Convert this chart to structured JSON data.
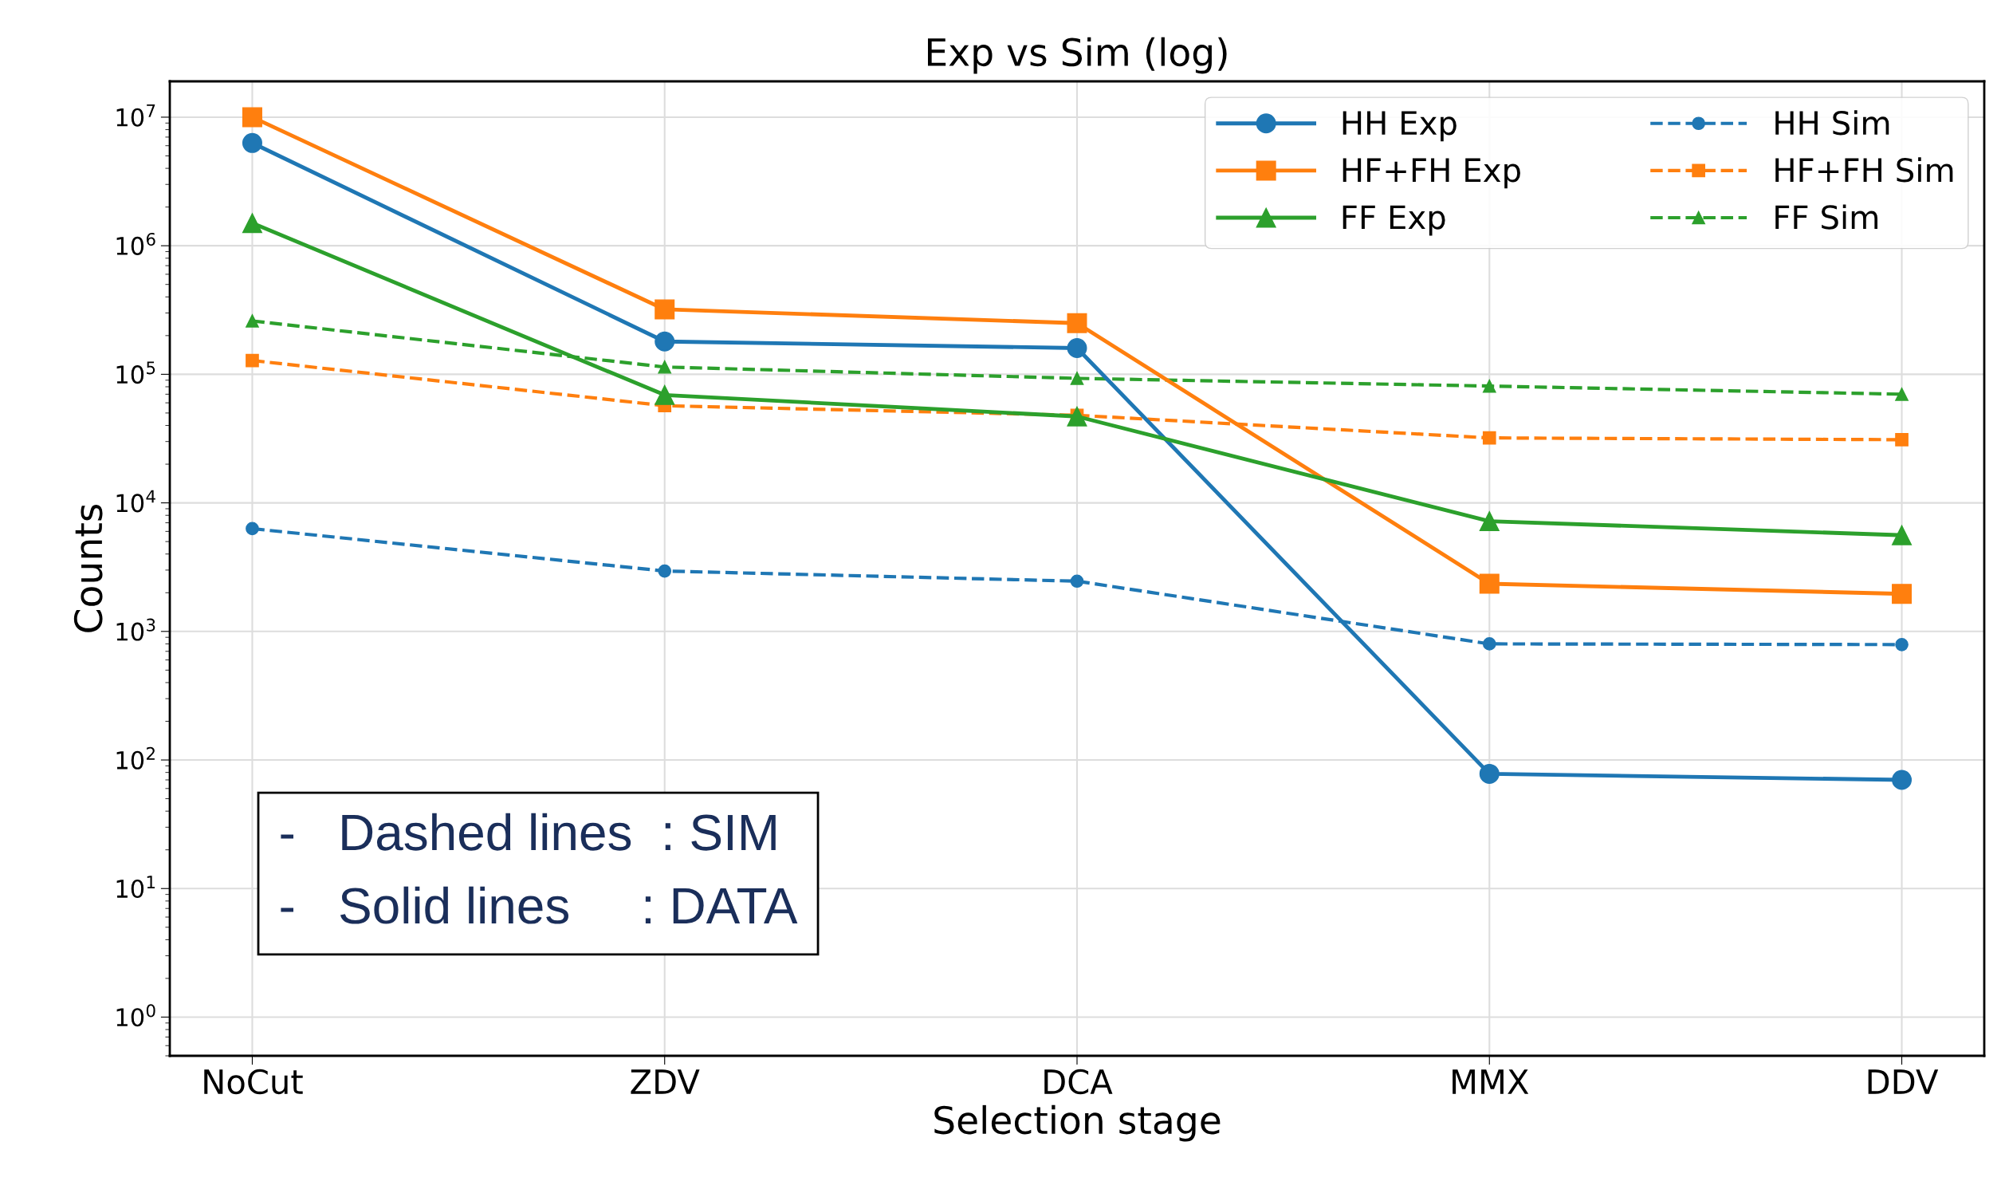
{
  "chart_data": {
    "type": "line",
    "title": "Exp vs Sim (log)",
    "xlabel": "Selection stage",
    "ylabel": "Counts",
    "categories": [
      "NoCut",
      "ZDV",
      "DCA",
      "MMX",
      "DDV"
    ],
    "series": [
      {
        "name": "HH Exp",
        "color": "#1f77b4",
        "marker": "circle",
        "line_style": "solid",
        "values": [
          6300000,
          180000,
          160000,
          78,
          70
        ]
      },
      {
        "name": "HF+FH Exp",
        "color": "#ff7f0e",
        "marker": "square",
        "line_style": "solid",
        "values": [
          10000000,
          320000,
          250000,
          2350,
          1960
        ]
      },
      {
        "name": "FF Exp",
        "color": "#2ca02c",
        "marker": "triangle",
        "line_style": "solid",
        "values": [
          1500000,
          69000,
          47000,
          7200,
          5600
        ]
      },
      {
        "name": "HH Sim",
        "color": "#1f77b4",
        "marker": "circle",
        "line_style": "dashed",
        "values": [
          6300,
          2950,
          2460,
          800,
          790
        ]
      },
      {
        "name": "HF+FH Sim",
        "color": "#ff7f0e",
        "marker": "square",
        "line_style": "dashed",
        "values": [
          128000,
          57000,
          48000,
          32000,
          31000
        ]
      },
      {
        "name": "FF Sim",
        "color": "#2ca02c",
        "marker": "triangle",
        "line_style": "dashed",
        "values": [
          260000,
          114000,
          93000,
          81000,
          70000
        ]
      }
    ],
    "log": "y",
    "ylim": [
      0.5,
      19000000
    ],
    "yticks": [
      {
        "value": 1,
        "label": "10$^{0}$"
      },
      {
        "value": 10,
        "label": "10$^{1}$"
      },
      {
        "value": 100,
        "label": "10$^{2}$"
      },
      {
        "value": 1000,
        "label": "10$^{3}$"
      },
      {
        "value": 10000,
        "label": "10$^{4}$"
      },
      {
        "value": 100000,
        "label": "10$^{5}$"
      },
      {
        "value": 1000000,
        "label": "10$^{6}$"
      },
      {
        "value": 10000000,
        "label": "10$^{7}$"
      }
    ],
    "grid": true,
    "legend": "top right",
    "annotations": [
      "-   Dashed lines  : SIM",
      "-   Solid lines     : DATA"
    ]
  }
}
